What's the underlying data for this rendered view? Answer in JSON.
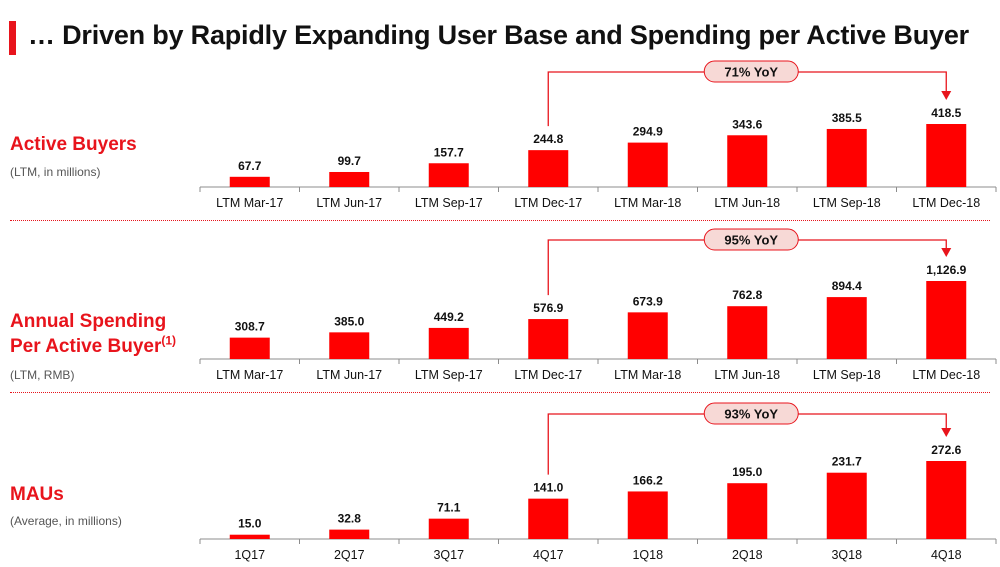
{
  "page": {
    "title": "… Driven by Rapidly Expanding User Base and Spending per Active Buyer"
  },
  "sections": [
    {
      "label_lines": [
        "Active Buyers"
      ],
      "footnote": "",
      "subtitle": "(LTM, in millions)"
    },
    {
      "label_lines": [
        "Annual Spending",
        "Per Active Buyer"
      ],
      "footnote": "(1)",
      "subtitle": "(LTM, RMB)"
    },
    {
      "label_lines": [
        "MAUs"
      ],
      "footnote": "",
      "subtitle": "(Average, in millions)"
    }
  ],
  "colors": {
    "accent": "#e8141c",
    "bar": "#ff0000",
    "text": "#111111",
    "axis": "#8c8c8c"
  },
  "chart_data": [
    {
      "type": "bar",
      "title": "Active Buyers",
      "unit": "LTM, in millions",
      "categories": [
        "LTM Mar-17",
        "LTM Jun-17",
        "LTM Sep-17",
        "LTM Dec-17",
        "LTM Mar-18",
        "LTM Jun-18",
        "LTM Sep-18",
        "LTM Dec-18"
      ],
      "values": [
        67.7,
        99.7,
        157.7,
        244.8,
        294.9,
        343.6,
        385.5,
        418.5
      ],
      "labels": [
        "67.7",
        "99.7",
        "157.7",
        "244.8",
        "294.9",
        "343.6",
        "385.5",
        "418.5"
      ],
      "ylim": [
        0,
        418.5
      ],
      "annotation": {
        "text": "71% YoY",
        "from_index": 3,
        "to_index": 7
      }
    },
    {
      "type": "bar",
      "title": "Annual Spending Per Active Buyer",
      "unit": "LTM, RMB",
      "categories": [
        "LTM Mar-17",
        "LTM Jun-17",
        "LTM Sep-17",
        "LTM Dec-17",
        "LTM Mar-18",
        "LTM Jun-18",
        "LTM Sep-18",
        "LTM Dec-18"
      ],
      "values": [
        308.7,
        385.0,
        449.2,
        576.9,
        673.9,
        762.8,
        894.4,
        1126.9
      ],
      "labels": [
        "308.7",
        "385.0",
        "449.2",
        "576.9",
        "673.9",
        "762.8",
        "894.4",
        "1,126.9"
      ],
      "ylim": [
        0,
        1126.9
      ],
      "annotation": {
        "text": "95% YoY",
        "from_index": 3,
        "to_index": 7
      }
    },
    {
      "type": "bar",
      "title": "MAUs",
      "unit": "Average, in millions",
      "categories": [
        "1Q17",
        "2Q17",
        "3Q17",
        "4Q17",
        "1Q18",
        "2Q18",
        "3Q18",
        "4Q18"
      ],
      "values": [
        15.0,
        32.8,
        71.1,
        141.0,
        166.2,
        195.0,
        231.7,
        272.6
      ],
      "labels": [
        "15.0",
        "32.8",
        "71.1",
        "141.0",
        "166.2",
        "195.0",
        "231.7",
        "272.6"
      ],
      "ylim": [
        0,
        272.6
      ],
      "annotation": {
        "text": "93% YoY",
        "from_index": 3,
        "to_index": 7
      }
    }
  ]
}
